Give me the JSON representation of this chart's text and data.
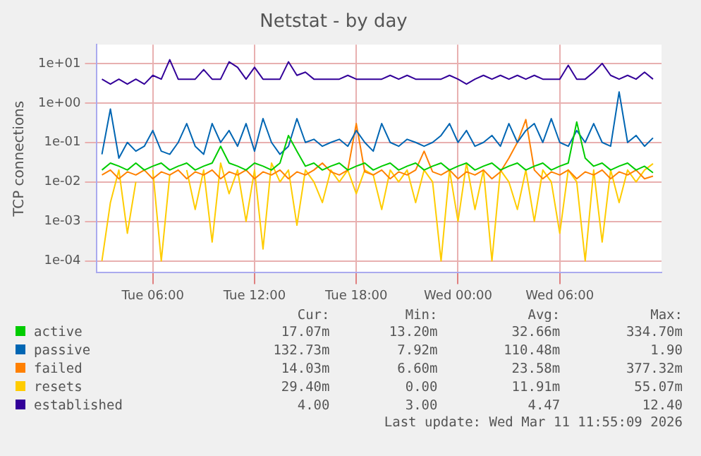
{
  "chart_data": {
    "type": "line",
    "title": "Netstat - by day",
    "ylabel": "TCP connections",
    "x": [
      "2026-03-10T03:00",
      "2026-03-10T03:30",
      "2026-03-10T04:00",
      "2026-03-10T04:30",
      "2026-03-10T05:00",
      "2026-03-10T05:30",
      "2026-03-10T06:00",
      "2026-03-10T06:30",
      "2026-03-10T07:00",
      "2026-03-10T07:30",
      "2026-03-10T08:00",
      "2026-03-10T08:30",
      "2026-03-10T09:00",
      "2026-03-10T09:30",
      "2026-03-10T10:00",
      "2026-03-10T10:30",
      "2026-03-10T11:00",
      "2026-03-10T11:30",
      "2026-03-10T12:00",
      "2026-03-10T12:30",
      "2026-03-10T13:00",
      "2026-03-10T13:30",
      "2026-03-10T14:00",
      "2026-03-10T14:30",
      "2026-03-10T15:00",
      "2026-03-10T15:30",
      "2026-03-10T16:00",
      "2026-03-10T16:30",
      "2026-03-10T17:00",
      "2026-03-10T17:30",
      "2026-03-10T18:00",
      "2026-03-10T18:30",
      "2026-03-10T19:00",
      "2026-03-10T19:30",
      "2026-03-10T20:00",
      "2026-03-10T20:30",
      "2026-03-10T21:00",
      "2026-03-10T21:30",
      "2026-03-10T22:00",
      "2026-03-10T22:30",
      "2026-03-10T23:00",
      "2026-03-10T23:30",
      "2026-03-11T00:00",
      "2026-03-11T00:30",
      "2026-03-11T01:00",
      "2026-03-11T01:30",
      "2026-03-11T02:00",
      "2026-03-11T02:30",
      "2026-03-11T03:00",
      "2026-03-11T03:30",
      "2026-03-11T04:00",
      "2026-03-11T04:30",
      "2026-03-11T05:00",
      "2026-03-11T05:30",
      "2026-03-11T06:00",
      "2026-03-11T06:30",
      "2026-03-11T07:00",
      "2026-03-11T07:30",
      "2026-03-11T08:00",
      "2026-03-11T08:30",
      "2026-03-11T09:00",
      "2026-03-11T09:30",
      "2026-03-11T10:00",
      "2026-03-11T10:30",
      "2026-03-11T11:00",
      "2026-03-11T11:30"
    ],
    "series": [
      {
        "name": "active",
        "color": "#00cc00",
        "values": [
          0.02,
          0.03,
          0.025,
          0.02,
          0.03,
          0.02,
          0.025,
          0.03,
          0.02,
          0.025,
          0.03,
          0.02,
          0.025,
          0.03,
          0.08,
          0.03,
          0.025,
          0.02,
          0.03,
          0.025,
          0.02,
          0.03,
          0.15,
          0.06,
          0.025,
          0.03,
          0.02,
          0.025,
          0.03,
          0.02,
          0.025,
          0.03,
          0.02,
          0.025,
          0.03,
          0.02,
          0.025,
          0.03,
          0.02,
          0.025,
          0.03,
          0.02,
          0.025,
          0.03,
          0.02,
          0.025,
          0.03,
          0.02,
          0.025,
          0.03,
          0.02,
          0.025,
          0.03,
          0.02,
          0.025,
          0.03,
          0.33,
          0.04,
          0.025,
          0.03,
          0.02,
          0.025,
          0.03,
          0.02,
          0.025,
          0.017
        ]
      },
      {
        "name": "passive",
        "color": "#0066b3",
        "values": [
          0.05,
          0.7,
          0.04,
          0.1,
          0.06,
          0.08,
          0.2,
          0.06,
          0.05,
          0.1,
          0.3,
          0.08,
          0.05,
          0.3,
          0.1,
          0.2,
          0.08,
          0.3,
          0.06,
          0.4,
          0.1,
          0.05,
          0.08,
          0.4,
          0.1,
          0.12,
          0.08,
          0.1,
          0.12,
          0.08,
          0.2,
          0.1,
          0.06,
          0.3,
          0.1,
          0.08,
          0.12,
          0.1,
          0.08,
          0.1,
          0.15,
          0.3,
          0.1,
          0.2,
          0.08,
          0.1,
          0.15,
          0.08,
          0.3,
          0.1,
          0.2,
          0.3,
          0.1,
          0.4,
          0.1,
          0.08,
          0.2,
          0.1,
          0.3,
          0.1,
          0.08,
          1.9,
          0.1,
          0.15,
          0.08,
          0.13
        ]
      },
      {
        "name": "failed",
        "color": "#ff8000",
        "values": [
          0.015,
          0.02,
          0.012,
          0.018,
          0.015,
          0.02,
          0.012,
          0.018,
          0.015,
          0.02,
          0.012,
          0.018,
          0.015,
          0.02,
          0.012,
          0.018,
          0.015,
          0.02,
          0.012,
          0.018,
          0.015,
          0.02,
          0.012,
          0.018,
          0.015,
          0.02,
          0.03,
          0.018,
          0.015,
          0.02,
          0.3,
          0.018,
          0.015,
          0.02,
          0.012,
          0.018,
          0.015,
          0.02,
          0.06,
          0.018,
          0.015,
          0.02,
          0.012,
          0.018,
          0.015,
          0.02,
          0.012,
          0.018,
          0.04,
          0.1,
          0.38,
          0.02,
          0.012,
          0.018,
          0.015,
          0.02,
          0.012,
          0.018,
          0.015,
          0.02,
          0.012,
          0.018,
          0.015,
          0.02,
          0.012,
          0.014
        ]
      },
      {
        "name": "resets",
        "color": "#ffcc00",
        "values": [
          0.0001,
          0.003,
          0.02,
          0.0005,
          0.01,
          null,
          0.02,
          0.0001,
          0.015,
          null,
          0.02,
          0.002,
          0.02,
          0.0003,
          0.03,
          0.005,
          0.02,
          0.001,
          0.02,
          0.0002,
          0.03,
          0.01,
          0.02,
          0.0008,
          0.02,
          0.01,
          0.003,
          0.02,
          0.01,
          0.02,
          0.005,
          0.02,
          0.015,
          0.002,
          0.02,
          0.01,
          0.02,
          0.003,
          0.02,
          0.01,
          0.0001,
          0.02,
          0.001,
          0.03,
          0.002,
          0.02,
          0.0001,
          0.02,
          0.01,
          0.002,
          0.02,
          0.001,
          0.02,
          0.01,
          0.0005,
          0.02,
          0.01,
          0.0001,
          0.02,
          0.0003,
          0.02,
          0.003,
          0.02,
          0.01,
          0.02,
          0.029
        ]
      },
      {
        "name": "established",
        "color": "#330099",
        "values": [
          4,
          3,
          4,
          3,
          4,
          3,
          5,
          4,
          12.4,
          4,
          4,
          4,
          7,
          4,
          4,
          11,
          8,
          4,
          8,
          4,
          4,
          4,
          11,
          5,
          6,
          4,
          4,
          4,
          4,
          5,
          4,
          4,
          4,
          4,
          5,
          4,
          5,
          4,
          4,
          4,
          4,
          5,
          4,
          3,
          4,
          5,
          4,
          5,
          4,
          5,
          4,
          5,
          4,
          4,
          4,
          9,
          4,
          4,
          6,
          10,
          5,
          4,
          5,
          4,
          6,
          4
        ]
      }
    ],
    "xlim": [
      "2026-03-10T02:40",
      "2026-03-11T12:00"
    ],
    "xticks": [
      {
        "value": "2026-03-10T06:00",
        "label": "Tue 06:00"
      },
      {
        "value": "2026-03-10T12:00",
        "label": "Tue 12:00"
      },
      {
        "value": "2026-03-10T18:00",
        "label": "Tue 18:00"
      },
      {
        "value": "2026-03-11T00:00",
        "label": "Wed 00:00"
      },
      {
        "value": "2026-03-11T06:00",
        "label": "Wed 06:00"
      }
    ],
    "ylim": [
      5e-05,
      30
    ],
    "yticks": [
      {
        "value": 0.0001,
        "label": "1e-04"
      },
      {
        "value": 0.001,
        "label": "1e-03"
      },
      {
        "value": 0.01,
        "label": "1e-02"
      },
      {
        "value": 0.1,
        "label": "1e-01"
      },
      {
        "value": 1,
        "label": "1e+00"
      },
      {
        "value": 10,
        "label": "1e+01"
      }
    ],
    "log": "y",
    "grid": true,
    "legend": "bottom",
    "marker": "none",
    "line_style": "solid",
    "annotations": [
      "Cur:",
      "Min:",
      "Avg:",
      "Max:",
      "17.07m",
      "13.20m",
      "32.66m",
      "334.70m",
      "132.73m",
      "7.92m",
      "110.48m",
      "1.90",
      "14.03m",
      "6.60m",
      "23.58m",
      "377.32m",
      "29.40m",
      "0.00",
      "11.91m",
      "55.07m",
      "4.00",
      "3.00",
      "4.47",
      "12.40",
      "Last update: Wed Mar 11 11:55:09 2026"
    ]
  }
}
